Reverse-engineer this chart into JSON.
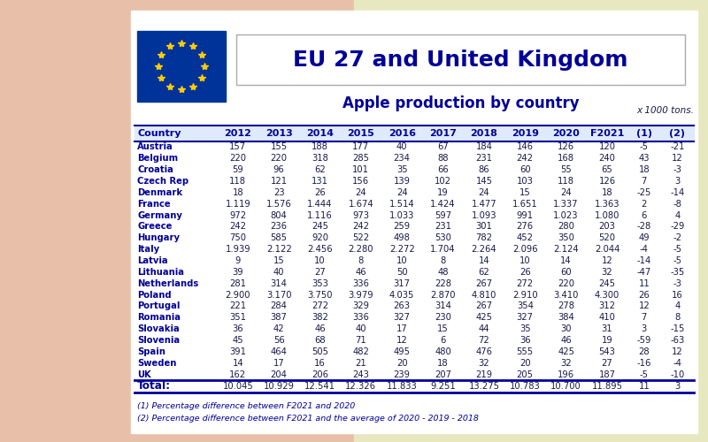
{
  "title": "EU 27 and United Kingdom",
  "subtitle": "Apple production by country",
  "unit_label": "x 1000 tons.",
  "columns": [
    "Country",
    "2012",
    "2013",
    "2014",
    "2015",
    "2016",
    "2017",
    "2018",
    "2019",
    "2020",
    "F2021",
    "(1)",
    "(2)"
  ],
  "rows": [
    [
      "Austria",
      "157",
      "155",
      "188",
      "177",
      "40",
      "67",
      "184",
      "146",
      "126",
      "120",
      "-5",
      "-21"
    ],
    [
      "Belgium",
      "220",
      "220",
      "318",
      "285",
      "234",
      "88",
      "231",
      "242",
      "168",
      "240",
      "43",
      "12"
    ],
    [
      "Croatia",
      "59",
      "96",
      "62",
      "101",
      "35",
      "66",
      "86",
      "60",
      "55",
      "65",
      "18",
      "-3"
    ],
    [
      "Czech Rep",
      "118",
      "121",
      "131",
      "156",
      "139",
      "102",
      "145",
      "103",
      "118",
      "126",
      "7",
      "3"
    ],
    [
      "Denmark",
      "18",
      "23",
      "26",
      "24",
      "24",
      "19",
      "24",
      "15",
      "24",
      "18",
      "-25",
      "-14"
    ],
    [
      "France",
      "1.119",
      "1.576",
      "1.444",
      "1.674",
      "1.514",
      "1.424",
      "1.477",
      "1.651",
      "1.337",
      "1.363",
      "2",
      "-8"
    ],
    [
      "Germany",
      "972",
      "804",
      "1.116",
      "973",
      "1.033",
      "597",
      "1.093",
      "991",
      "1.023",
      "1.080",
      "6",
      "4"
    ],
    [
      "Greece",
      "242",
      "236",
      "245",
      "242",
      "259",
      "231",
      "301",
      "276",
      "280",
      "203",
      "-28",
      "-29"
    ],
    [
      "Hungary",
      "750",
      "585",
      "920",
      "522",
      "498",
      "530",
      "782",
      "452",
      "350",
      "520",
      "49",
      "-2"
    ],
    [
      "Italy",
      "1.939",
      "2.122",
      "2.456",
      "2.280",
      "2.272",
      "1.704",
      "2.264",
      "2.096",
      "2.124",
      "2.044",
      "-4",
      "-5"
    ],
    [
      "Latvia",
      "9",
      "15",
      "10",
      "8",
      "10",
      "8",
      "14",
      "10",
      "14",
      "12",
      "-14",
      "-5"
    ],
    [
      "Lithuania",
      "39",
      "40",
      "27",
      "46",
      "50",
      "48",
      "62",
      "26",
      "60",
      "32",
      "-47",
      "-35"
    ],
    [
      "Netherlands",
      "281",
      "314",
      "353",
      "336",
      "317",
      "228",
      "267",
      "272",
      "220",
      "245",
      "11",
      "-3"
    ],
    [
      "Poland",
      "2.900",
      "3.170",
      "3.750",
      "3.979",
      "4.035",
      "2.870",
      "4.810",
      "2.910",
      "3.410",
      "4.300",
      "26",
      "16"
    ],
    [
      "Portugal",
      "221",
      "284",
      "272",
      "329",
      "263",
      "314",
      "267",
      "354",
      "278",
      "312",
      "12",
      "4"
    ],
    [
      "Romania",
      "351",
      "387",
      "382",
      "336",
      "327",
      "230",
      "425",
      "327",
      "384",
      "410",
      "7",
      "8"
    ],
    [
      "Slovakia",
      "36",
      "42",
      "46",
      "40",
      "17",
      "15",
      "44",
      "35",
      "30",
      "31",
      "3",
      "-15"
    ],
    [
      "Slovenia",
      "45",
      "56",
      "68",
      "71",
      "12",
      "6",
      "72",
      "36",
      "46",
      "19",
      "-59",
      "-63"
    ],
    [
      "Spain",
      "391",
      "464",
      "505",
      "482",
      "495",
      "480",
      "476",
      "555",
      "425",
      "543",
      "28",
      "12"
    ],
    [
      "Sweden",
      "14",
      "17",
      "16",
      "21",
      "20",
      "18",
      "32",
      "20",
      "32",
      "27",
      "-16",
      "-4"
    ],
    [
      "UK",
      "162",
      "204",
      "206",
      "243",
      "239",
      "207",
      "219",
      "205",
      "196",
      "187",
      "-5",
      "-10"
    ]
  ],
  "total_row": [
    "Total:",
    "10.045",
    "10.929",
    "12.541",
    "12.326",
    "11.833",
    "9.251",
    "13.275",
    "10.783",
    "10.700",
    "11.895",
    "11",
    "3"
  ],
  "footnote1": "(1) Percentage difference between F2021 and 2020",
  "footnote2": "(2) Percentage difference between F2021 and the average of 2020 - 2019 - 2018",
  "outer_bg_left": "#E8BFA8",
  "outer_bg_right": "#E8E8C0",
  "table_bg": "#FFFFFF",
  "header_color": "#000099",
  "country_color": "#000099",
  "data_color": "#1a1a4a",
  "title_color": "#000099",
  "line_color": "#000099",
  "flag_blue": "#003399",
  "flag_star": "#FFCC00",
  "title_box_edge": "#AAAAAA",
  "footnote_color": "#000099"
}
